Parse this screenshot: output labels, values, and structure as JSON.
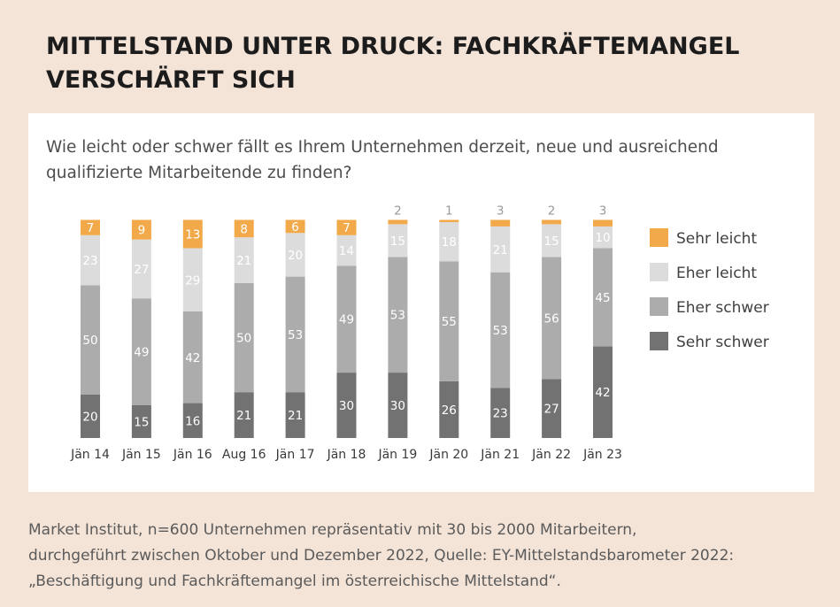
{
  "header": {
    "title_line1": "MITTELSTAND UNTER DRUCK: FACHKRÄFTEMANGEL",
    "title_line2": "VERSCHÄRFT SICH"
  },
  "question": {
    "line1": "Wie leicht oder schwer fällt es Ihrem Unternehmen derzeit, neue und ausreichend",
    "line2": "qualifizierte Mitarbeitende zu finden?"
  },
  "source": {
    "line1": "Market Institut, n=600 Unternehmen repräsentativ mit 30 bis 2000 Mitarbeitern,",
    "line2": "durchgeführt zwischen Oktober und Dezember 2022, Quelle: EY-Mittelstandsbarometer 2022:",
    "line3": "„Beschäftigung und Fachkräftemangel im österreichische Mittelstand“."
  },
  "colors": {
    "page_bg": "#f4e4d8",
    "sehr_leicht": "#f2a94a",
    "eher_leicht": "#dcdcdc",
    "eher_schwer": "#acacac",
    "sehr_schwer": "#727272"
  },
  "chart_data": {
    "type": "bar",
    "stacked": true,
    "categories": [
      "Jän 14",
      "Jän 15",
      "Jän 16",
      "Aug 16",
      "Jän 17",
      "Jän 18",
      "Jän 19",
      "Jän 20",
      "Jän 21",
      "Jän 22",
      "Jän 23"
    ],
    "series": [
      {
        "name": "Sehr schwer",
        "color": "#727272",
        "values": [
          20,
          15,
          16,
          21,
          21,
          30,
          30,
          26,
          23,
          27,
          42
        ]
      },
      {
        "name": "Eher schwer",
        "color": "#acacac",
        "values": [
          50,
          49,
          42,
          50,
          53,
          49,
          53,
          55,
          53,
          56,
          45
        ]
      },
      {
        "name": "Eher leicht",
        "color": "#dcdcdc",
        "values": [
          23,
          27,
          29,
          21,
          20,
          14,
          15,
          18,
          21,
          15,
          10
        ]
      },
      {
        "name": "Sehr leicht",
        "color": "#f2a94a",
        "values": [
          7,
          9,
          13,
          8,
          6,
          7,
          2,
          1,
          3,
          2,
          3
        ]
      }
    ],
    "legend_order": [
      "Sehr leicht",
      "Eher leicht",
      "Eher schwer",
      "Sehr schwer"
    ],
    "legend_position": "right",
    "units": "percent",
    "grid": false
  }
}
